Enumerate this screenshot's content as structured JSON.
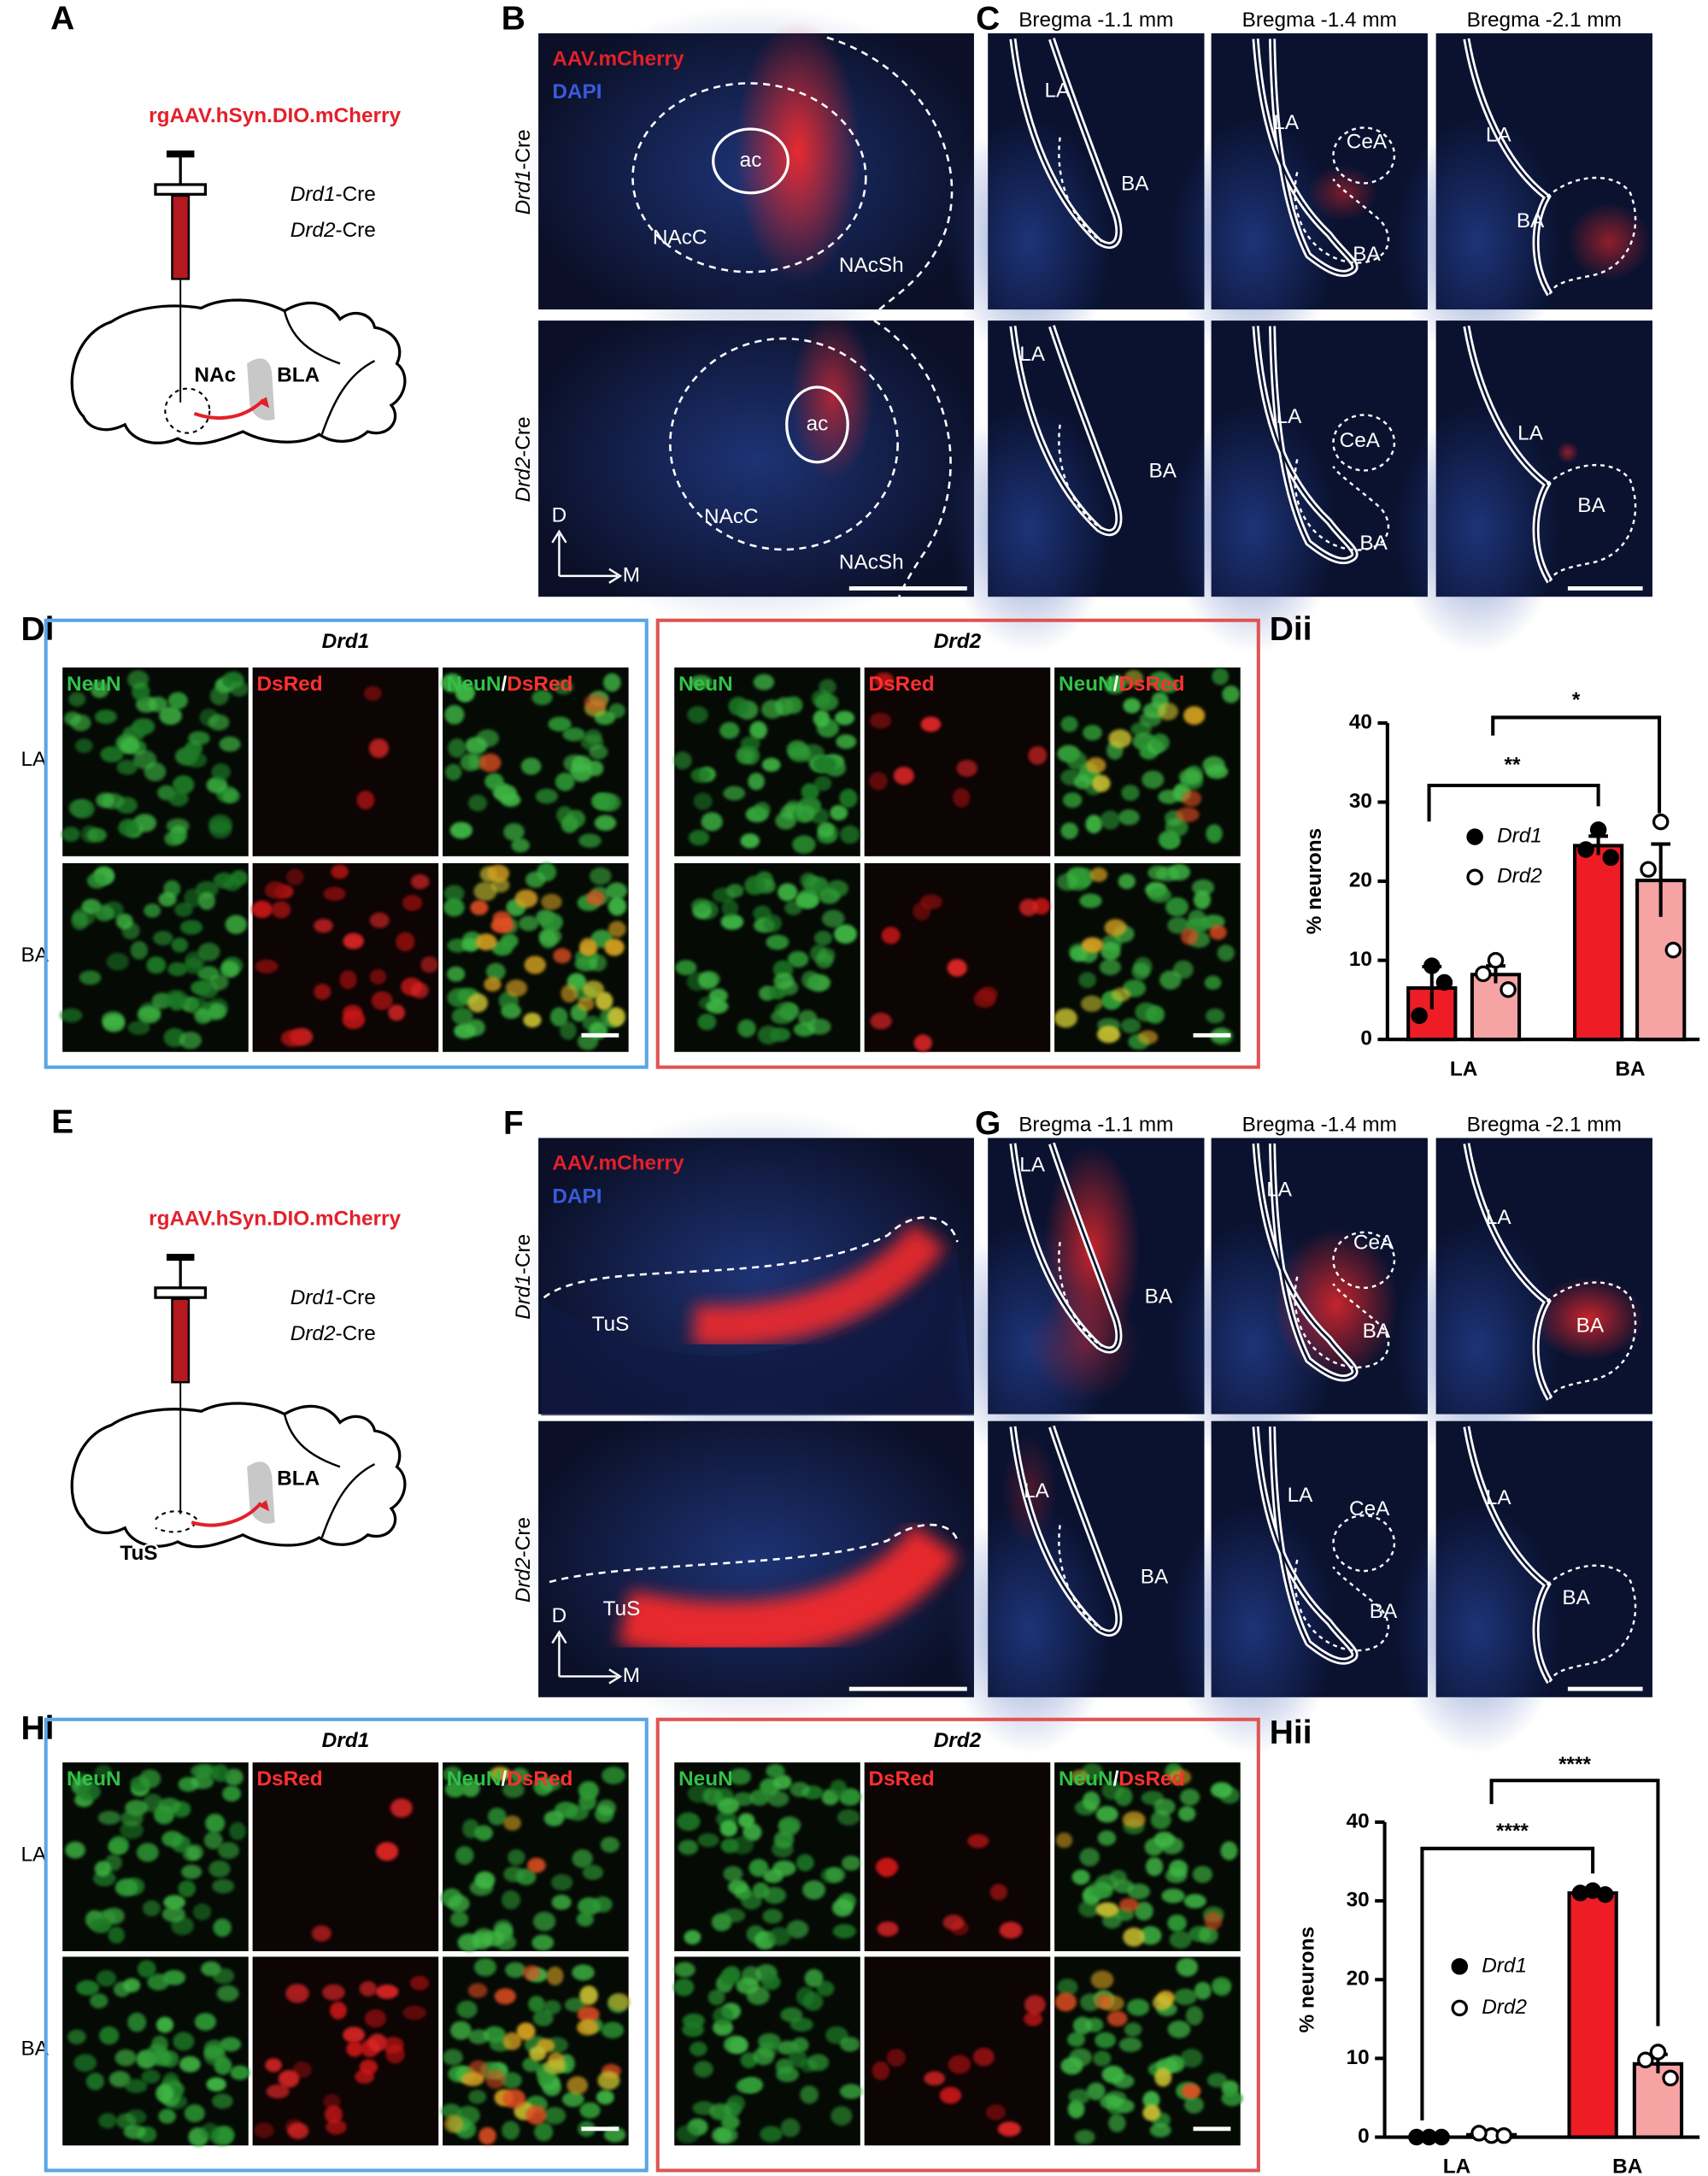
{
  "panels": {
    "A": {
      "letter": "A",
      "virus": "rgAAV.hSyn.DIO.mCherry",
      "lines": [
        [
          "Drd1",
          "-Cre"
        ],
        [
          "Drd2",
          "-Cre"
        ]
      ],
      "regions": [
        "NAc",
        "BLA"
      ]
    },
    "B": {
      "letter": "B",
      "legend": [
        "AAV.mCherry",
        "DAPI"
      ],
      "rows": [
        {
          "gene": [
            "Drd1",
            "-Cre"
          ],
          "labels": [
            "ac",
            "NAcC",
            "NAcSh"
          ]
        },
        {
          "gene": [
            "Drd2",
            "-Cre"
          ],
          "labels": [
            "ac",
            "NAcC",
            "NAcSh"
          ]
        }
      ],
      "axis": [
        "D",
        "M"
      ]
    },
    "C": {
      "letter": "C",
      "bregma": [
        "Bregma -1.1 mm",
        "Bregma -1.4 mm",
        "Bregma -2.1 mm"
      ],
      "rows": [
        [
          [
            "LA",
            "BA"
          ],
          [
            "LA",
            "CeA",
            "BA"
          ],
          [
            "LA",
            "BA"
          ]
        ],
        [
          [
            "LA",
            "BA"
          ],
          [
            "LA",
            "CeA",
            "BA"
          ],
          [
            "LA",
            "BA"
          ]
        ]
      ]
    },
    "D": {
      "letter": "Di",
      "rows": [
        "LA",
        "BA"
      ],
      "groups": [
        {
          "title": "Drd1",
          "channels": [
            [
              "NeuN"
            ],
            [
              "DsRed"
            ],
            [
              "NeuN",
              "/",
              "DsRed"
            ]
          ]
        },
        {
          "title": "Drd2",
          "channels": [
            [
              "NeuN"
            ],
            [
              "DsRed"
            ],
            [
              "NeuN",
              "/",
              "DsRed"
            ]
          ]
        }
      ]
    },
    "E": {
      "letter": "E",
      "virus": "rgAAV.hSyn.DIO.mCherry",
      "lines": [
        [
          "Drd1",
          "-Cre"
        ],
        [
          "Drd2",
          "-Cre"
        ]
      ],
      "regions": [
        "BLA",
        "TuS"
      ]
    },
    "F": {
      "letter": "F",
      "legend": [
        "AAV.mCherry",
        "DAPI"
      ],
      "rows": [
        {
          "gene": [
            "Drd1",
            "-Cre"
          ],
          "labels": [
            "TuS"
          ]
        },
        {
          "gene": [
            "Drd2",
            "-Cre"
          ],
          "labels": [
            "TuS"
          ]
        }
      ],
      "axis": [
        "D",
        "M"
      ]
    },
    "G": {
      "letter": "G",
      "bregma": [
        "Bregma -1.1 mm",
        "Bregma -1.4 mm",
        "Bregma -2.1 mm"
      ],
      "rows": [
        [
          [
            "LA",
            "BA"
          ],
          [
            "LA",
            "CeA",
            "BA"
          ],
          [
            "LA",
            "BA"
          ]
        ],
        [
          [
            "LA",
            "BA"
          ],
          [
            "LA",
            "CeA",
            "BA"
          ],
          [
            "LA",
            "BA"
          ]
        ]
      ]
    },
    "H": {
      "letter": "Hi",
      "rows": [
        "LA",
        "BA"
      ],
      "groups": [
        {
          "title": "Drd1",
          "channels": [
            [
              "NeuN"
            ],
            [
              "DsRed"
            ],
            [
              "NeuN",
              "/",
              "DsRed"
            ]
          ]
        },
        {
          "title": "Drd2",
          "channels": [
            [
              "NeuN"
            ],
            [
              "DsRed"
            ],
            [
              "NeuN",
              "/",
              "DsRed"
            ]
          ]
        }
      ]
    }
  },
  "chart_data": [
    {
      "type": "bar",
      "label": "Dii",
      "ylabel": "% neurons",
      "categories": [
        "LA",
        "BA"
      ],
      "ylim": [
        0,
        40
      ],
      "yticks": [
        0,
        10,
        20,
        30,
        40
      ],
      "series": [
        {
          "name": "Drd1",
          "color": "#ee1c25",
          "marker": "filled",
          "values": [
            6.5,
            24.5
          ],
          "errors": [
            2.7,
            1.2
          ],
          "points": [
            [
              9.3,
              3.0,
              7.2
            ],
            [
              26.5,
              24.0,
              23.0
            ]
          ]
        },
        {
          "name": "Drd2",
          "color": "#f5a3a3",
          "marker": "open",
          "values": [
            8.2,
            20.1
          ],
          "errors": [
            1.1,
            4.6
          ],
          "points": [
            [
              10.0,
              8.3,
              6.3
            ],
            [
              27.5,
              21.5,
              11.3
            ]
          ]
        }
      ],
      "annotations": [
        "**",
        "*"
      ]
    },
    {
      "type": "bar",
      "label": "Hii",
      "ylabel": "% neurons",
      "categories": [
        "LA",
        "BA"
      ],
      "ylim": [
        0,
        40
      ],
      "yticks": [
        0,
        10,
        20,
        30,
        40
      ],
      "series": [
        {
          "name": "Drd1",
          "color": "#ee1c25",
          "marker": "filled",
          "values": [
            0,
            31
          ],
          "errors": [
            0,
            0.2
          ],
          "points": [
            [
              0,
              0,
              0
            ],
            [
              31.3,
              31.0,
              30.8
            ]
          ]
        },
        {
          "name": "Drd2",
          "color": "#f5a3a3",
          "marker": "open",
          "values": [
            0.3,
            9.3
          ],
          "errors": [
            0.2,
            1.2
          ],
          "points": [
            [
              0.2,
              0.5,
              0.2
            ],
            [
              10.8,
              9.8,
              7.5
            ]
          ]
        }
      ],
      "annotations": [
        "****",
        "****"
      ]
    }
  ]
}
